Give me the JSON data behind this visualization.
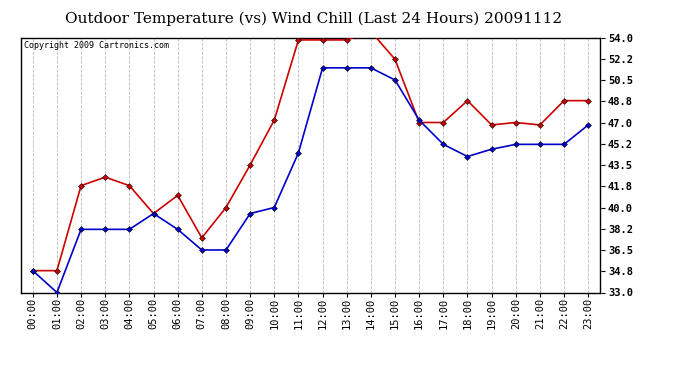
{
  "title": "Outdoor Temperature (vs) Wind Chill (Last 24 Hours) 20091112",
  "copyright": "Copyright 2009 Cartronics.com",
  "hours": [
    "00:00",
    "01:00",
    "02:00",
    "03:00",
    "04:00",
    "05:00",
    "06:00",
    "07:00",
    "08:00",
    "09:00",
    "10:00",
    "11:00",
    "12:00",
    "13:00",
    "14:00",
    "15:00",
    "16:00",
    "17:00",
    "18:00",
    "19:00",
    "20:00",
    "21:00",
    "22:00",
    "23:00"
  ],
  "temp": [
    34.8,
    34.8,
    41.8,
    42.5,
    41.8,
    39.5,
    41.0,
    37.5,
    40.0,
    43.5,
    47.2,
    53.8,
    53.8,
    53.8,
    54.5,
    52.2,
    47.0,
    47.0,
    48.8,
    46.8,
    47.0,
    46.8,
    48.8,
    48.8
  ],
  "windchill": [
    34.8,
    33.0,
    38.2,
    38.2,
    38.2,
    39.5,
    38.2,
    36.5,
    36.5,
    39.5,
    40.0,
    44.5,
    51.5,
    51.5,
    51.5,
    50.5,
    47.2,
    45.2,
    44.2,
    44.8,
    45.2,
    45.2,
    45.2,
    46.8
  ],
  "temp_color": "#cc0000",
  "windchill_color": "#0000cc",
  "ylim_min": 33.0,
  "ylim_max": 54.0,
  "yticks": [
    33.0,
    34.8,
    36.5,
    38.2,
    40.0,
    41.8,
    43.5,
    45.2,
    47.0,
    48.8,
    50.5,
    52.2,
    54.0
  ],
  "bg_color": "#ffffff",
  "plot_bg_color": "#ffffff",
  "grid_color": "#bbbbbb",
  "marker": "D",
  "marker_size": 3,
  "linewidth": 1.2,
  "title_fontsize": 11,
  "copyright_fontsize": 6,
  "tick_fontsize": 7.5,
  "ytick_fontweight": "bold"
}
